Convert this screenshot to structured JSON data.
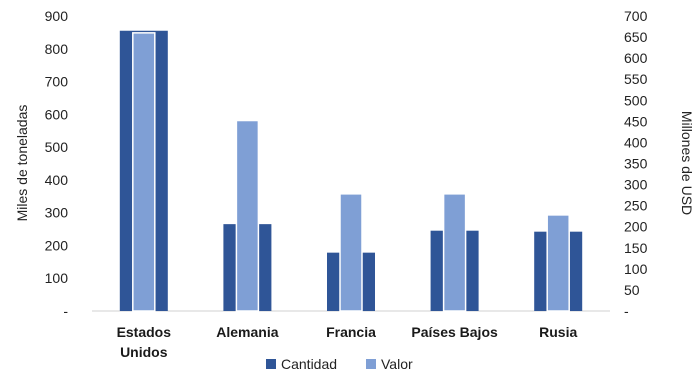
{
  "chart_data": {
    "type": "bar",
    "categories": [
      [
        "Estados",
        "Unidos"
      ],
      [
        "Alemania"
      ],
      [
        "Francia"
      ],
      [
        "Países Bajos"
      ],
      [
        "Rusia"
      ]
    ],
    "series": [
      {
        "name": "Cantidad",
        "axis": "left",
        "color": "#2F5597",
        "values": [
          855,
          265,
          178,
          245,
          242
        ]
      },
      {
        "name": "Valor",
        "axis": "right",
        "color": "#7F9FD5",
        "values": [
          660,
          452,
          278,
          278,
          228
        ]
      }
    ],
    "ylabel": "Miles de toneladas",
    "ylim": [
      0,
      900
    ],
    "yticks": [
      "-",
      "100",
      "200",
      "300",
      "400",
      "500",
      "600",
      "700",
      "800",
      "900"
    ],
    "y2label": "Millones de USD",
    "y2lim": [
      0,
      700
    ],
    "y2ticks": [
      "-",
      "50",
      "100",
      "150",
      "200",
      "250",
      "300",
      "350",
      "400",
      "450",
      "500",
      "550",
      "600",
      "650",
      "700"
    ],
    "grid": false,
    "legend": "bottom"
  }
}
